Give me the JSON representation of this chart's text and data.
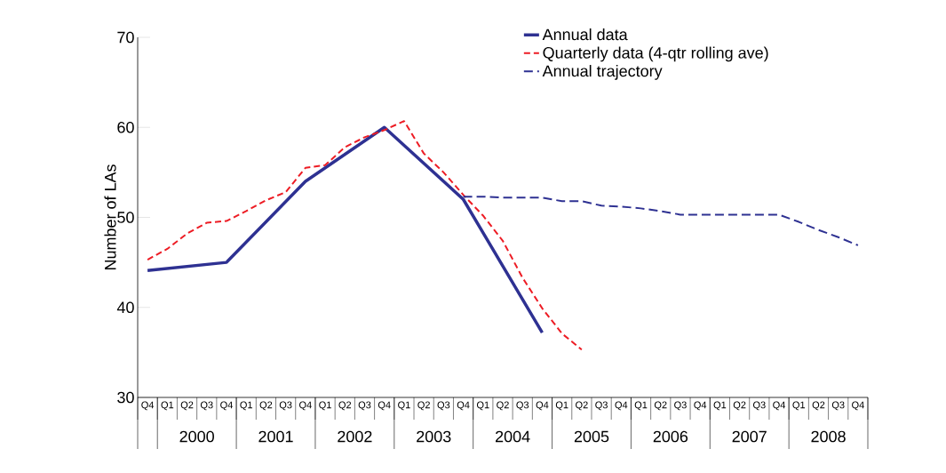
{
  "chart_data": {
    "type": "line",
    "ylabel": "Number of LAs",
    "categories": [
      "Q4",
      "Q1",
      "Q2",
      "Q3",
      "Q4",
      "Q1",
      "Q2",
      "Q3",
      "Q4",
      "Q1",
      "Q2",
      "Q3",
      "Q4",
      "Q1",
      "Q2",
      "Q3",
      "Q4",
      "Q1",
      "Q2",
      "Q3",
      "Q4",
      "Q1",
      "Q2",
      "Q3",
      "Q4",
      "Q1",
      "Q2",
      "Q3",
      "Q4",
      "Q1",
      "Q2",
      "Q3",
      "Q4",
      "Q1",
      "Q2",
      "Q3",
      "Q4"
    ],
    "annotations": [
      "2000",
      "2001",
      "2002",
      "2003",
      "2004",
      "2005",
      "2006",
      "2007",
      "2008"
    ],
    "ylim": [
      30,
      70
    ],
    "yticks": [
      30,
      40,
      50,
      60,
      70
    ],
    "legend": "top right",
    "grid": false,
    "marker": "none",
    "series": [
      {
        "name": "Annual data",
        "color": "#2e3192",
        "line_style": "solid",
        "values": [
          44.1,
          null,
          null,
          null,
          45.0,
          null,
          null,
          null,
          54.0,
          null,
          null,
          null,
          60.0,
          null,
          null,
          null,
          52.0,
          null,
          null,
          null,
          37.2,
          null,
          null,
          null,
          null,
          null,
          null,
          null,
          null,
          null,
          null,
          null,
          null,
          null,
          null,
          null,
          null
        ]
      },
      {
        "name": "Quarterly data (4-qtr rolling ave)",
        "color": "#ed1c24",
        "line_style": "dashed",
        "values": [
          45.3,
          46.5,
          48.2,
          49.4,
          49.6,
          50.7,
          51.9,
          52.8,
          55.5,
          55.8,
          57.8,
          58.9,
          59.7,
          60.7,
          57.1,
          55.0,
          52.5,
          50.2,
          47.4,
          43.3,
          39.9,
          37.1,
          35.3,
          null,
          null,
          null,
          null,
          null,
          null,
          null,
          null,
          null,
          null,
          null,
          null,
          null,
          null
        ]
      },
      {
        "name": "Annual trajectory",
        "color": "#2e3192",
        "line_style": "dashed",
        "values": [
          null,
          null,
          null,
          null,
          null,
          null,
          null,
          null,
          null,
          null,
          null,
          null,
          null,
          null,
          null,
          null,
          52.3,
          52.3,
          52.2,
          52.2,
          52.2,
          51.8,
          51.8,
          51.3,
          51.2,
          51.0,
          50.7,
          50.3,
          50.3,
          50.3,
          50.3,
          50.3,
          50.3,
          49.5,
          48.6,
          47.8,
          46.9
        ]
      }
    ]
  }
}
